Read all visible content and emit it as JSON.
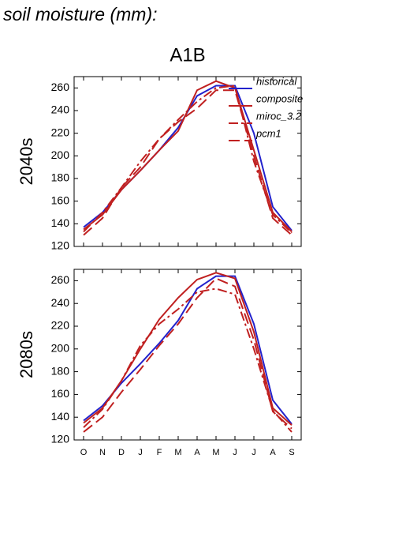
{
  "title": "soil moisture (mm):",
  "chart_data": [
    {
      "type": "line",
      "title": "A1B",
      "ylabel": "2040s",
      "ylim": [
        120,
        270
      ],
      "yticks": [
        120,
        140,
        160,
        180,
        200,
        220,
        240,
        260
      ],
      "legend": "upper right",
      "series": [
        {
          "name": "historical",
          "color": "#2222cc",
          "dash": "solid",
          "values": [
            137,
            150,
            170,
            187,
            205,
            225,
            253,
            262,
            262,
            220,
            155,
            134
          ]
        },
        {
          "name": "composite",
          "color": "#c02020",
          "dash": "solid",
          "values": [
            135,
            148,
            170,
            187,
            205,
            222,
            258,
            266,
            260,
            205,
            150,
            133
          ]
        },
        {
          "name": "miroc_3.2",
          "color": "#c02020",
          "dash": "dashdot",
          "values": [
            133,
            150,
            172,
            195,
            215,
            232,
            248,
            260,
            262,
            195,
            148,
            132
          ]
        },
        {
          "name": "pcm1",
          "color": "#c02020",
          "dash": "dashed",
          "values": [
            130,
            145,
            172,
            190,
            215,
            230,
            242,
            258,
            258,
            200,
            145,
            130
          ]
        }
      ]
    },
    {
      "type": "line",
      "ylabel": "2080s",
      "categories": [
        "O",
        "N",
        "D",
        "J",
        "F",
        "M",
        "A",
        "M",
        "J",
        "J",
        "A",
        "S"
      ],
      "ylim": [
        120,
        270
      ],
      "yticks": [
        120,
        140,
        160,
        180,
        200,
        220,
        240,
        260
      ],
      "series": [
        {
          "color": "#2222cc",
          "dash": "solid",
          "values": [
            137,
            150,
            170,
            187,
            205,
            225,
            253,
            264,
            264,
            222,
            155,
            134
          ]
        },
        {
          "color": "#c02020",
          "dash": "solid",
          "values": [
            135,
            148,
            172,
            200,
            226,
            245,
            261,
            267,
            262,
            215,
            148,
            133
          ]
        },
        {
          "color": "#c02020",
          "dash": "dashdot",
          "values": [
            131,
            147,
            172,
            203,
            222,
            235,
            250,
            253,
            248,
            200,
            146,
            127
          ]
        },
        {
          "color": "#c02020",
          "dash": "dashed",
          "values": [
            127,
            140,
            162,
            182,
            203,
            222,
            245,
            262,
            255,
            208,
            145,
            130
          ]
        }
      ]
    }
  ]
}
